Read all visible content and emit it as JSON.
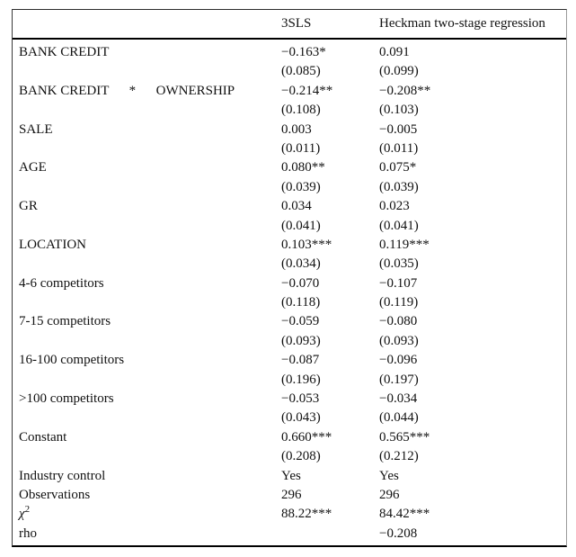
{
  "table": {
    "columns": [
      "",
      "3SLS",
      "Heckman two-stage regression"
    ],
    "rows": [
      {
        "label": "BANK CREDIT",
        "coef": [
          "−0.163*",
          "0.091"
        ],
        "se": [
          "(0.085)",
          "(0.099)"
        ]
      },
      {
        "label": "BANK CREDIT      *      OWNERSHIP",
        "coef": [
          "−0.214**",
          "−0.208**"
        ],
        "se": [
          "(0.108)",
          "(0.103)"
        ]
      },
      {
        "label": "SALE",
        "coef": [
          "0.003",
          "−0.005"
        ],
        "se": [
          "(0.011)",
          "(0.011)"
        ]
      },
      {
        "label": "AGE",
        "coef": [
          "0.080**",
          "0.075*"
        ],
        "se": [
          "(0.039)",
          "(0.039)"
        ]
      },
      {
        "label": "GR",
        "coef": [
          "0.034",
          "0.023"
        ],
        "se": [
          "(0.041)",
          "(0.041)"
        ]
      },
      {
        "label": "LOCATION",
        "coef": [
          "0.103***",
          "0.119***"
        ],
        "se": [
          "(0.034)",
          "(0.035)"
        ]
      },
      {
        "label": "4-6 competitors",
        "coef": [
          "−0.070",
          "−0.107"
        ],
        "se": [
          "(0.118)",
          "(0.119)"
        ]
      },
      {
        "label": "7-15 competitors",
        "coef": [
          "−0.059",
          "−0.080"
        ],
        "se": [
          "(0.093)",
          "(0.093)"
        ]
      },
      {
        "label": "16-100 competitors",
        "coef": [
          "−0.087",
          "−0.096"
        ],
        "se": [
          "(0.196)",
          "(0.197)"
        ]
      },
      {
        "label": ">100 competitors",
        "coef": [
          "−0.053",
          "−0.034"
        ],
        "se": [
          "(0.043)",
          "(0.044)"
        ]
      },
      {
        "label": "Constant",
        "coef": [
          "0.660***",
          "0.565***"
        ],
        "se": [
          "(0.208)",
          "(0.212)"
        ]
      }
    ],
    "footer_rows": [
      {
        "label": "Industry control",
        "values": [
          "Yes",
          "Yes"
        ]
      },
      {
        "label": "Observations",
        "values": [
          "296",
          "296"
        ]
      },
      {
        "label": "chi-squared",
        "label_base": "χ",
        "label_sup": "2",
        "values": [
          "88.22***",
          "84.42***"
        ]
      },
      {
        "label": "rho",
        "values": [
          "",
          "−0.208"
        ]
      }
    ]
  }
}
